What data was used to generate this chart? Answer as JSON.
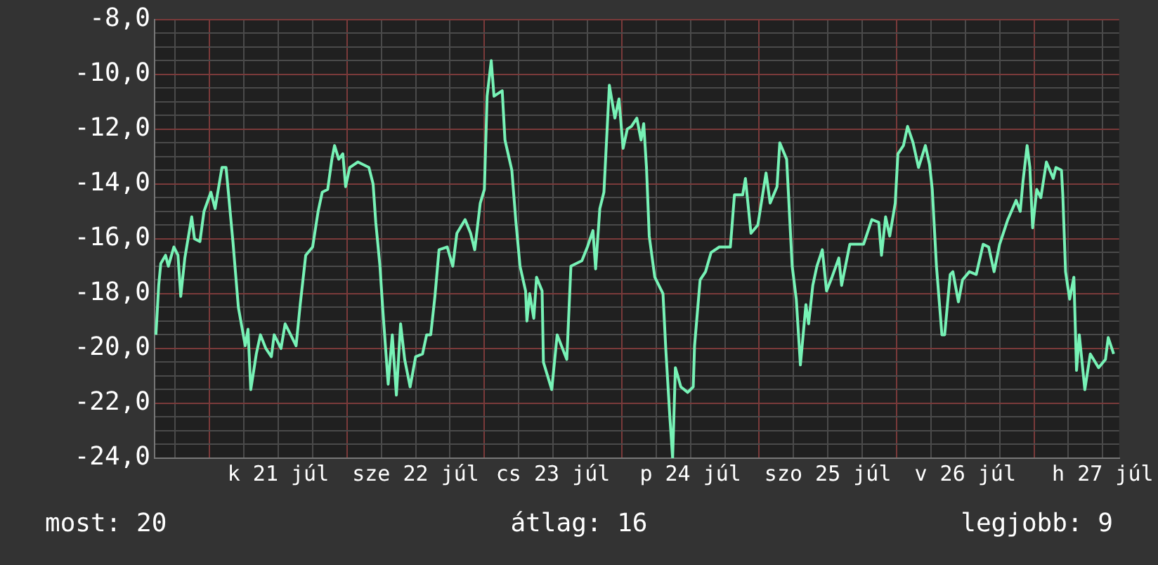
{
  "chart_data": {
    "type": "line",
    "x": [
      "--07-20T14:38",
      "--07-20T15:07",
      "--07-20T15:29",
      "--07-20T16:19",
      "--07-20T16:48",
      "--07-20T17:46",
      "--07-20T18:29",
      "--07-20T18:58",
      "--07-20T19:41",
      "--07-20T20:53",
      "--07-20T21:22",
      "--07-20T22:19",
      "--07-20T23:02",
      "--07-21T00:14",
      "--07-21T00:58",
      "--07-21T02:10",
      "--07-21T02:53",
      "--07-21T04:05",
      "--07-21T05:02",
      "--07-21T06:14",
      "--07-21T06:43",
      "--07-21T07:12",
      "--07-21T08:10",
      "--07-21T08:53",
      "--07-21T09:50",
      "--07-21T10:48",
      "--07-21T11:17",
      "--07-21T12:29",
      "--07-21T13:12",
      "--07-21T14:10",
      "--07-21T15:07",
      "--07-21T15:50",
      "--07-21T16:48",
      "--07-21T18:00",
      "--07-21T18:58",
      "--07-21T19:41",
      "--07-21T20:38",
      "--07-21T21:22",
      "--07-21T21:50",
      "--07-21T22:34",
      "--07-21T23:17",
      "--07-21T23:46",
      "--07-22T00:29",
      "--07-22T01:55",
      "--07-22T03:50",
      "--07-22T04:34",
      "--07-22T05:02",
      "--07-22T05:46",
      "--07-22T06:14",
      "--07-22T07:12",
      "--07-22T07:55",
      "--07-22T08:38",
      "--07-22T09:22",
      "--07-22T10:05",
      "--07-22T11:02",
      "--07-22T12:00",
      "--07-22T13:12",
      "--07-22T13:55",
      "--07-22T14:38",
      "--07-22T15:22",
      "--07-22T16:05",
      "--07-22T17:31",
      "--07-22T18:29",
      "--07-22T19:12",
      "--07-22T20:38",
      "--07-22T21:36",
      "--07-22T22:19",
      "--07-22T23:17",
      "--07-23T00:00",
      "--07-23T00:29",
      "--07-23T01:12",
      "--07-23T01:41",
      "--07-23T03:07",
      "--07-23T03:36",
      "--07-23T04:48",
      "--07-23T05:31",
      "--07-23T06:14",
      "--07-23T07:12",
      "--07-23T07:26",
      "--07-23T07:55",
      "--07-23T08:38",
      "--07-23T09:07",
      "--07-23T10:05",
      "--07-23T10:19",
      "--07-23T11:46",
      "--07-23T12:43",
      "--07-23T14:24",
      "--07-23T15:07",
      "--07-23T17:02",
      "--07-23T18:00",
      "--07-23T18:58",
      "--07-23T19:26",
      "--07-23T20:10",
      "--07-23T20:53",
      "--07-23T21:50",
      "--07-23T22:48",
      "--07-23T23:31",
      "--07-24T00:14",
      "--07-24T00:58",
      "--07-24T01:41",
      "--07-24T02:38",
      "--07-24T03:22",
      "--07-24T03:50",
      "--07-24T04:19",
      "--07-24T04:48",
      "--07-24T05:46",
      "--07-24T07:12",
      "--07-24T07:41",
      "--07-24T08:24",
      "--07-24T08:53",
      "--07-24T09:22",
      "--07-24T10:19",
      "--07-24T11:31",
      "--07-24T12:29",
      "--07-24T12:43",
      "--07-24T13:41",
      "--07-24T14:38",
      "--07-24T15:36",
      "--07-24T17:02",
      "--07-24T18:58",
      "--07-24T19:41",
      "--07-24T21:07",
      "--07-24T21:36",
      "--07-24T22:34",
      "--07-24T23:46",
      "--07-25T01:12",
      "--07-25T01:55",
      "--07-25T03:07",
      "--07-25T03:36",
      "--07-25T04:48",
      "--07-25T05:46",
      "--07-25T06:29",
      "--07-25T07:12",
      "--07-25T08:10",
      "--07-25T08:38",
      "--07-25T09:22",
      "--07-25T10:05",
      "--07-25T11:02",
      "--07-25T11:46",
      "--07-25T12:43",
      "--07-25T13:55",
      "--07-25T14:24",
      "--07-25T15:50",
      "--07-25T18:14",
      "--07-25T19:41",
      "--07-25T20:53",
      "--07-25T21:22",
      "--07-25T22:05",
      "--07-25T22:48",
      "--07-25T23:46",
      "--07-26T00:14",
      "--07-26T01:12",
      "--07-26T01:55",
      "--07-26T02:53",
      "--07-26T03:50",
      "--07-26T05:02",
      "--07-26T05:46",
      "--07-26T06:14",
      "--07-26T06:58",
      "--07-26T07:55",
      "--07-26T08:24",
      "--07-26T09:22",
      "--07-26T09:50",
      "--07-26T10:48",
      "--07-26T11:31",
      "--07-26T12:43",
      "--07-26T13:55",
      "--07-26T15:07",
      "--07-26T16:05",
      "--07-26T17:02",
      "--07-26T18:00",
      "--07-26T19:26",
      "--07-26T20:53",
      "--07-26T21:36",
      "--07-26T22:05",
      "--07-26T22:48",
      "--07-26T23:17",
      "--07-26T23:46",
      "--07-27T00:29",
      "--07-27T01:12",
      "--07-27T02:10",
      "--07-27T03:22",
      "--07-27T03:50",
      "--07-27T04:48",
      "--07-27T05:02",
      "--07-27T05:31",
      "--07-27T06:14",
      "--07-27T06:58",
      "--07-27T07:26",
      "--07-27T07:55",
      "--07-27T08:53",
      "--07-27T09:50",
      "--07-27T11:17",
      "--07-27T12:29",
      "--07-27T12:58",
      "--07-27T13:55"
    ],
    "series": [
      {
        "color": "#77f2b6",
        "values": [
          -19.5,
          -17.7,
          -16.9,
          -16.6,
          -17.0,
          -16.3,
          -16.6,
          -18.1,
          -16.7,
          -15.2,
          -16.0,
          -16.1,
          -15.0,
          -14.3,
          -14.9,
          -13.4,
          -13.4,
          -16.1,
          -18.5,
          -19.9,
          -19.3,
          -21.5,
          -20.2,
          -19.5,
          -20.0,
          -20.3,
          -19.5,
          -20.0,
          -19.1,
          -19.5,
          -19.9,
          -18.4,
          -16.6,
          -16.3,
          -15.0,
          -14.3,
          -14.2,
          -13.1,
          -12.6,
          -13.1,
          -12.9,
          -14.1,
          -13.4,
          -13.2,
          -13.4,
          -14.0,
          -15.4,
          -17.0,
          -18.5,
          -21.3,
          -19.5,
          -21.7,
          -19.1,
          -20.4,
          -21.4,
          -20.3,
          -20.2,
          -19.5,
          -19.5,
          -18.1,
          -16.4,
          -16.3,
          -17.0,
          -15.8,
          -15.3,
          -15.8,
          -16.4,
          -14.7,
          -14.2,
          -10.8,
          -9.5,
          -10.8,
          -10.6,
          -12.4,
          -13.5,
          -15.4,
          -17.0,
          -17.9,
          -19.0,
          -18.0,
          -18.9,
          -17.4,
          -17.9,
          -20.5,
          -21.5,
          -19.5,
          -20.4,
          -17.0,
          -16.8,
          -16.3,
          -15.7,
          -17.1,
          -14.9,
          -14.3,
          -10.4,
          -11.6,
          -10.9,
          -12.7,
          -12.0,
          -11.9,
          -11.6,
          -12.4,
          -11.8,
          -13.4,
          -15.9,
          -17.4,
          -18.0,
          -20.0,
          -22.5,
          -24.0,
          -20.7,
          -21.4,
          -21.6,
          -21.4,
          -19.9,
          -17.5,
          -17.2,
          -16.5,
          -16.3,
          -16.3,
          -14.4,
          -14.4,
          -13.8,
          -15.8,
          -15.5,
          -13.6,
          -14.7,
          -14.1,
          -12.5,
          -13.1,
          -17.0,
          -18.2,
          -20.6,
          -18.4,
          -19.1,
          -17.7,
          -17.0,
          -16.4,
          -17.9,
          -17.4,
          -16.7,
          -17.7,
          -16.2,
          -16.2,
          -15.3,
          -15.4,
          -16.6,
          -15.2,
          -15.9,
          -14.7,
          -12.9,
          -12.6,
          -11.9,
          -12.5,
          -13.4,
          -12.6,
          -13.3,
          -14.2,
          -17.0,
          -19.5,
          -19.5,
          -17.3,
          -17.2,
          -18.3,
          -17.5,
          -17.2,
          -17.3,
          -16.2,
          -16.3,
          -17.2,
          -16.2,
          -15.3,
          -14.6,
          -15.0,
          -13.9,
          -12.6,
          -13.4,
          -15.6,
          -14.2,
          -14.5,
          -13.2,
          -13.8,
          -13.4,
          -13.5,
          -14.4,
          -17.2,
          -18.2,
          -17.4,
          -20.8,
          -19.5,
          -21.5,
          -20.2,
          -20.7,
          -20.4,
          -19.6,
          -20.2
        ]
      }
    ],
    "xlim": [
      "--07-20T14:24",
      "--07-27T14:53"
    ],
    "xticks": [
      {
        "value": "--07-20T18:00",
        "label": null
      },
      {
        "value": "--07-21T00:00",
        "label": null
      },
      {
        "value": "--07-21T06:00",
        "label": null
      },
      {
        "value": "--07-21T12:00",
        "label": "k 21 júl"
      },
      {
        "value": "--07-21T18:00",
        "label": null
      },
      {
        "value": "--07-22T00:00",
        "label": null
      },
      {
        "value": "--07-22T06:00",
        "label": null
      },
      {
        "value": "--07-22T12:00",
        "label": "sze 22 júl"
      },
      {
        "value": "--07-22T18:00",
        "label": null
      },
      {
        "value": "--07-23T00:00",
        "label": null
      },
      {
        "value": "--07-23T06:00",
        "label": null
      },
      {
        "value": "--07-23T12:00",
        "label": "cs 23 júl"
      },
      {
        "value": "--07-23T18:00",
        "label": null
      },
      {
        "value": "--07-24T00:00",
        "label": null
      },
      {
        "value": "--07-24T06:00",
        "label": null
      },
      {
        "value": "--07-24T12:00",
        "label": "p 24 júl"
      },
      {
        "value": "--07-24T18:00",
        "label": null
      },
      {
        "value": "--07-25T00:00",
        "label": null
      },
      {
        "value": "--07-25T06:00",
        "label": null
      },
      {
        "value": "--07-25T12:00",
        "label": "szo 25 júl"
      },
      {
        "value": "--07-25T18:00",
        "label": null
      },
      {
        "value": "--07-26T00:00",
        "label": null
      },
      {
        "value": "--07-26T06:00",
        "label": null
      },
      {
        "value": "--07-26T12:00",
        "label": "v 26 júl"
      },
      {
        "value": "--07-26T18:00",
        "label": null
      },
      {
        "value": "--07-27T00:00",
        "label": null
      },
      {
        "value": "--07-27T06:00",
        "label": null
      },
      {
        "value": "--07-27T12:00",
        "label": "h 27 júl"
      }
    ],
    "ylim": [
      -24,
      -8
    ],
    "yticks": [
      {
        "value": -24,
        "label": "-24,0"
      },
      {
        "value": -23.5,
        "label": null
      },
      {
        "value": -23,
        "label": null
      },
      {
        "value": -22.5,
        "label": null
      },
      {
        "value": -22,
        "label": "-22,0"
      },
      {
        "value": -21.5,
        "label": null
      },
      {
        "value": -21,
        "label": null
      },
      {
        "value": -20.5,
        "label": null
      },
      {
        "value": -20,
        "label": "-20,0"
      },
      {
        "value": -19.5,
        "label": null
      },
      {
        "value": -19,
        "label": null
      },
      {
        "value": -18.5,
        "label": null
      },
      {
        "value": -18,
        "label": "-18,0"
      },
      {
        "value": -17.5,
        "label": null
      },
      {
        "value": -17,
        "label": null
      },
      {
        "value": -16.5,
        "label": null
      },
      {
        "value": -16,
        "label": "-16,0"
      },
      {
        "value": -15.5,
        "label": null
      },
      {
        "value": -15,
        "label": null
      },
      {
        "value": -14.5,
        "label": null
      },
      {
        "value": -14,
        "label": "-14,0"
      },
      {
        "value": -13.5,
        "label": null
      },
      {
        "value": -13,
        "label": null
      },
      {
        "value": -12.5,
        "label": null
      },
      {
        "value": -12,
        "label": "-12,0"
      },
      {
        "value": -11.5,
        "label": null
      },
      {
        "value": -11,
        "label": null
      },
      {
        "value": -10.5,
        "label": null
      },
      {
        "value": -10,
        "label": "-10,0"
      },
      {
        "value": -9.5,
        "label": null
      },
      {
        "value": -9,
        "label": null
      },
      {
        "value": -8.5,
        "label": null
      },
      {
        "value": -8,
        "label": "-8,0"
      }
    ],
    "grid": true,
    "marker": "none",
    "line_style": "solid",
    "annotations": [
      "most: 20",
      "átlag: 16",
      "legjobb: 9"
    ]
  }
}
